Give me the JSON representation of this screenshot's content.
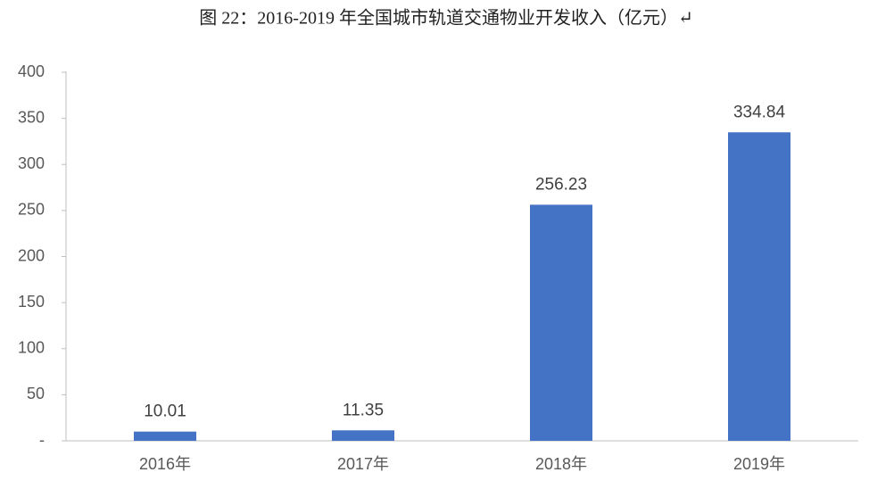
{
  "chart_data": {
    "type": "bar",
    "title": "图 22：2016-2019 年全国城市轨道交通物业开发收入（亿元）↵",
    "categories": [
      "2016年",
      "2017年",
      "2018年",
      "2019年"
    ],
    "values": [
      10.01,
      11.35,
      256.23,
      334.84
    ],
    "color": "#4472c4",
    "ylim": [
      0,
      400
    ],
    "yticks": [
      {
        "value": 0,
        "label": "-"
      },
      50,
      100,
      150,
      200,
      250,
      300,
      350,
      400
    ],
    "grid": false
  }
}
